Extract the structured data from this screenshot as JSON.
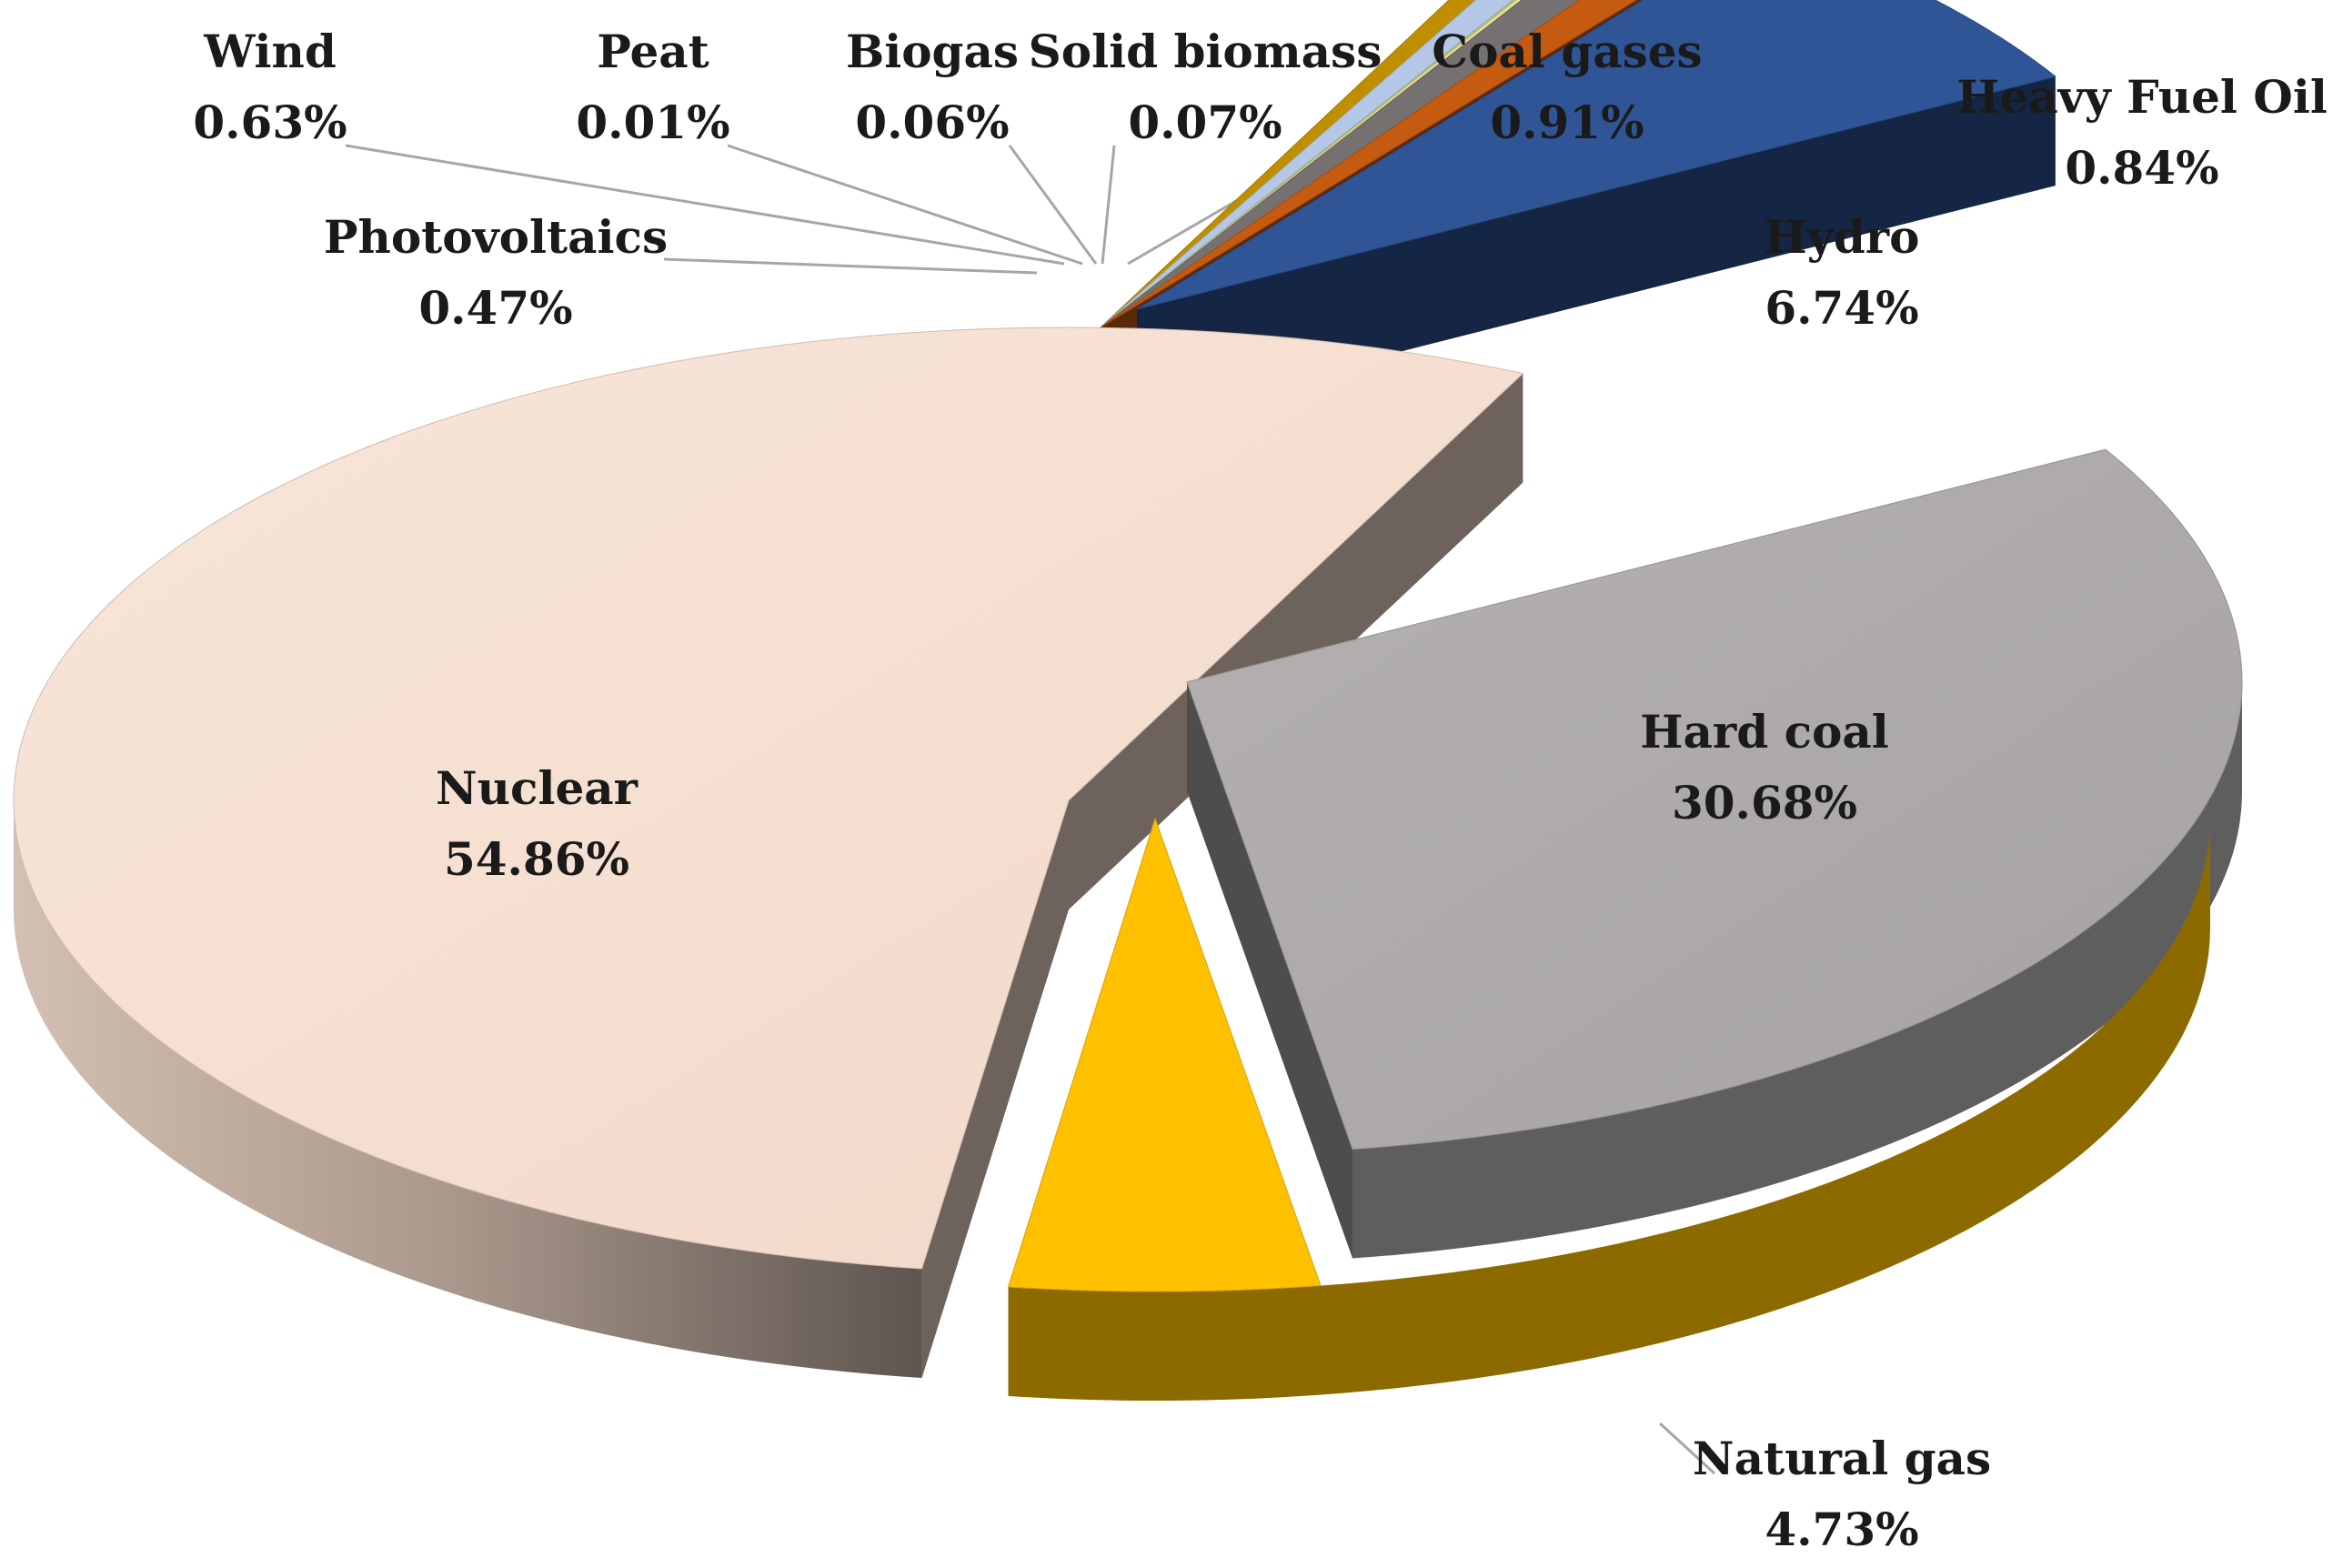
{
  "chart_data": {
    "type": "pie",
    "style": "3d-exploded",
    "title": "",
    "slices": [
      {
        "label": "Nuclear",
        "value": 54.86,
        "display": "54.86%",
        "color": "#F4DCCD"
      },
      {
        "label": "Photovoltaics",
        "value": 0.47,
        "display": "0.47%",
        "color": "#BF8F00"
      },
      {
        "label": "Wind",
        "value": 0.63,
        "display": "0.63%",
        "color": "#B4C7E7"
      },
      {
        "label": "Peat",
        "value": 0.01,
        "display": "0.01%",
        "color": "#C9C9C9"
      },
      {
        "label": "Biogas",
        "value": 0.06,
        "display": "0.06%",
        "color": "#A9D18E"
      },
      {
        "label": "Solid biomass",
        "value": 0.07,
        "display": "0.07%",
        "color": "#FFE699"
      },
      {
        "label": "Coal gases",
        "value": 0.91,
        "display": "0.91%",
        "color": "#767171"
      },
      {
        "label": "Heavy Fuel Oil",
        "value": 0.84,
        "display": "0.84%",
        "color": "#C55A11"
      },
      {
        "label": "Hydro",
        "value": 6.74,
        "display": "6.74%",
        "color": "#2F5597"
      },
      {
        "label": "Hard coal",
        "value": 30.68,
        "display": "30.68%",
        "color": "#ADAAAA"
      },
      {
        "label": "Natural gas",
        "value": 4.73,
        "display": "4.73%",
        "color": "#FFC000"
      }
    ]
  }
}
